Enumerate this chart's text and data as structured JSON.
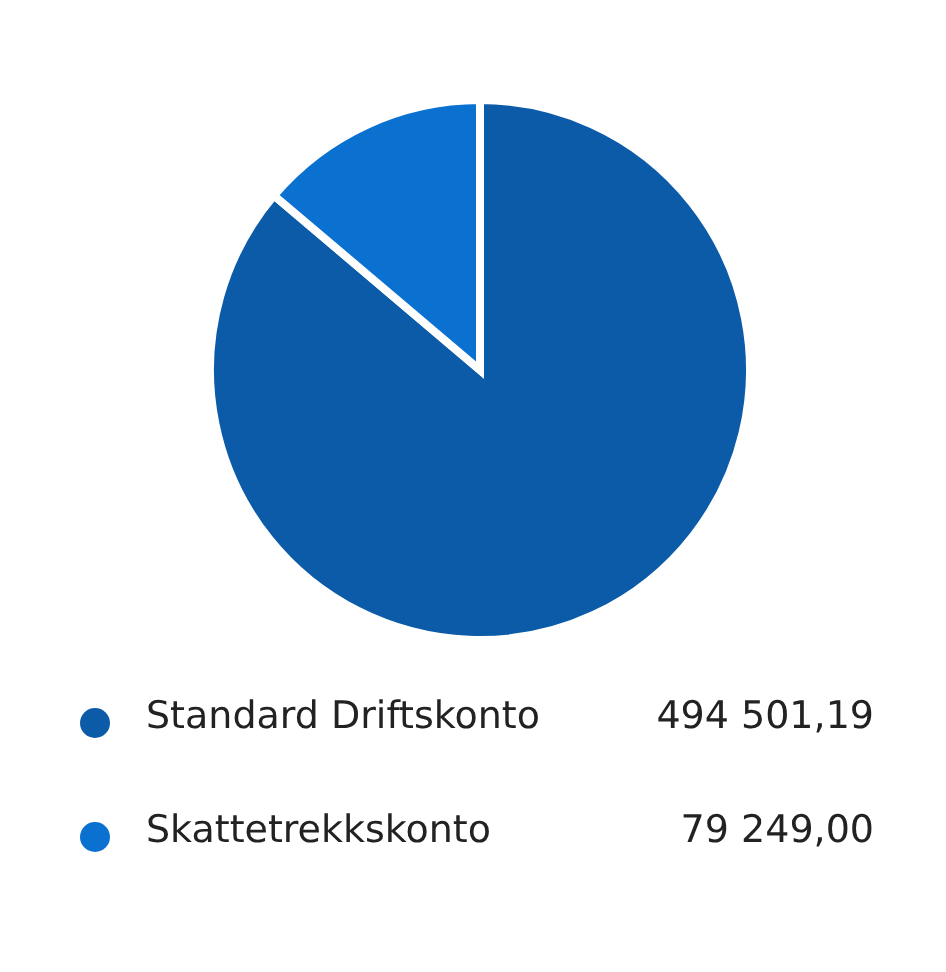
{
  "chart_data": {
    "type": "pie",
    "categories": [
      "Standard Driftskonto",
      "Skattetrekkskonto"
    ],
    "values": [
      494501.19,
      79249.0
    ],
    "value_labels": [
      "494 501,19",
      "79 249,00"
    ],
    "colors": [
      "#0b5ba8",
      "#0a71d1"
    ],
    "legend": "bottom"
  }
}
